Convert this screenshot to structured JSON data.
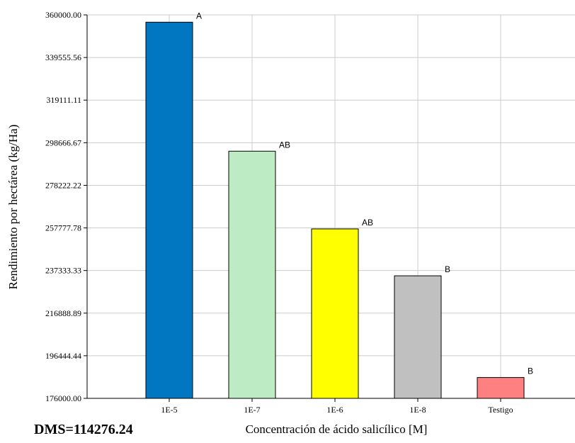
{
  "chart_data": {
    "type": "bar",
    "xlabel": "Concentración de ácido salicílico [M]",
    "ylabel": "Rendimiento por hectárea (kg/Ha)",
    "categories": [
      "1E-5",
      "1E-7",
      "1E-6",
      "1E-8",
      "Testigo"
    ],
    "values": [
      356500,
      294600,
      257300,
      234800,
      186000
    ],
    "groups": [
      "A",
      "AB",
      "AB",
      "B",
      "B"
    ],
    "colors": [
      "#0077C0",
      "#BDECC4",
      "#FFFF00",
      "#C0C0C0",
      "#FF8080"
    ],
    "ylim": [
      176000,
      360000
    ],
    "yticks": [
      "176000.00",
      "196444.44",
      "216888.89",
      "237333.33",
      "257777.78",
      "278222.22",
      "298666.67",
      "319111.11",
      "339555.56",
      "360000.00"
    ],
    "grid": true
  },
  "footer": {
    "note": "DMS=114276.24"
  }
}
